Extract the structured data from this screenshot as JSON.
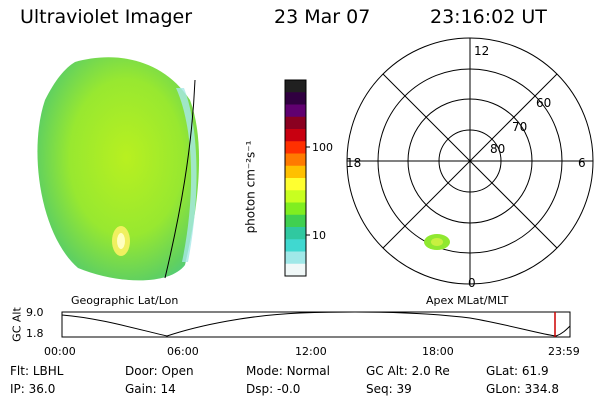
{
  "header": {
    "title": "Ultraviolet Imager",
    "date": "23 Mar 07",
    "time": "23:16:02 UT"
  },
  "colorbar": {
    "unit_label": "photon cm⁻²s⁻¹",
    "tick_labels": [
      "100",
      "10"
    ],
    "colors": [
      "#202020",
      "#300040",
      "#600070",
      "#8a0020",
      "#c80010",
      "#ff3000",
      "#ff7a00",
      "#ffc000",
      "#ffff30",
      "#c8ff20",
      "#80ee20",
      "#40d050",
      "#30c8a0",
      "#40d8d0",
      "#a0e8e8",
      "#f0f8f8"
    ]
  },
  "left_panel": {
    "caption": "Geographic Lat/Lon"
  },
  "right_panel": {
    "caption": "Apex MLat/MLT",
    "mlt_labels": {
      "top": "12",
      "left": "18",
      "right": "6",
      "bottom": "0"
    },
    "lat_labels": [
      "60",
      "70",
      "80"
    ]
  },
  "timeline": {
    "y_axis_label": "GC Alt",
    "y_ticks": [
      "9.0",
      "1.8"
    ],
    "x_ticks": [
      "00:00",
      "06:00",
      "12:00",
      "18:00",
      "23:59"
    ],
    "current_time_marker_color": "#cc0000"
  },
  "status": [
    [
      {
        "label": "Flt:",
        "value": "LBHL"
      },
      {
        "label": "Door:",
        "value": "Open"
      },
      {
        "label": "Mode:",
        "value": "Normal"
      },
      {
        "label": "GC Alt:",
        "value": "2.0 Re"
      },
      {
        "label": "GLat:",
        "value": "61.9"
      }
    ],
    [
      {
        "label": "IP:",
        "value": "36.0"
      },
      {
        "label": "Gain:",
        "value": "14"
      },
      {
        "label": "Dsp:",
        "value": "-0.0"
      },
      {
        "label": "Seq:",
        "value": "39"
      },
      {
        "label": "GLon:",
        "value": "334.8"
      }
    ]
  ]
}
